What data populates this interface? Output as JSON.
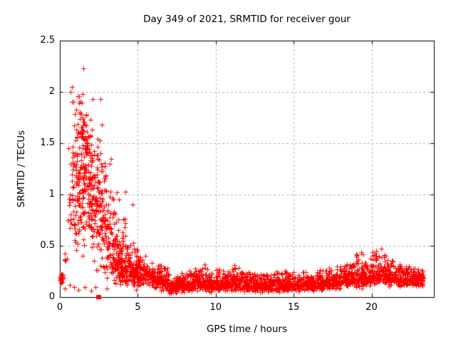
{
  "window": {
    "background": "#ffffff"
  },
  "chart_data": {
    "type": "scatter",
    "title": "Day 349 of 2021, SRMTID for receiver gour",
    "xlabel": "GPS time / hours",
    "ylabel": "SRMTID / TECUs",
    "xlim": [
      0,
      24
    ],
    "ylim": [
      0,
      2.5
    ],
    "grid": true,
    "legend": "none",
    "marker": "plus-cross",
    "marker_size_px": 7,
    "colors": {
      "marker": "#ff0000",
      "grid": "#b4b4b4",
      "border": "#000000",
      "text": "#000000",
      "background": "#ffffff"
    },
    "xticks": {
      "values": [
        0,
        5,
        10,
        15,
        20
      ],
      "labels": [
        "0",
        "5",
        "10",
        "15",
        "20"
      ]
    },
    "yticks": {
      "values": [
        0,
        0.5,
        1,
        1.5,
        2,
        2.5
      ],
      "labels": [
        "0",
        "0.5",
        "1",
        "1.5",
        "2",
        "2.5"
      ]
    },
    "seed": 1349,
    "bins_format": "[x_start_hours, x_width_hours, n_points, y_min_TECU, y_max_TECU, y_mode_TECU]",
    "bins": [
      [
        0.0,
        0.2,
        28,
        0.12,
        0.23,
        0.17
      ],
      [
        0.25,
        0.25,
        6,
        0.28,
        0.55,
        0.4
      ],
      [
        0.5,
        0.25,
        12,
        0.3,
        1.5,
        0.8
      ],
      [
        0.75,
        0.25,
        30,
        0.3,
        2.05,
        1.0
      ],
      [
        1.0,
        0.25,
        45,
        0.35,
        2.1,
        1.2
      ],
      [
        1.25,
        0.25,
        55,
        0.4,
        2.2,
        1.4
      ],
      [
        1.5,
        0.25,
        55,
        0.4,
        1.95,
        1.35
      ],
      [
        1.75,
        0.25,
        50,
        0.35,
        1.85,
        1.1
      ],
      [
        2.0,
        0.25,
        45,
        0.3,
        1.75,
        1.0
      ],
      [
        2.25,
        0.25,
        40,
        0.25,
        1.6,
        0.9
      ],
      [
        2.5,
        0.25,
        40,
        0.2,
        1.9,
        0.85
      ],
      [
        2.75,
        0.25,
        35,
        0.2,
        1.4,
        0.72
      ],
      [
        3.0,
        0.25,
        35,
        0.15,
        1.35,
        0.6
      ],
      [
        3.25,
        0.25,
        35,
        0.15,
        1.1,
        0.5
      ],
      [
        3.5,
        0.25,
        40,
        0.1,
        0.9,
        0.35
      ],
      [
        3.75,
        0.25,
        45,
        0.1,
        0.75,
        0.3
      ],
      [
        4.0,
        0.25,
        40,
        0.1,
        0.8,
        0.3
      ],
      [
        4.25,
        0.25,
        35,
        0.12,
        0.6,
        0.3
      ],
      [
        4.5,
        0.25,
        35,
        0.1,
        0.65,
        0.28
      ],
      [
        4.75,
        0.25,
        35,
        0.08,
        0.6,
        0.25
      ],
      [
        5.0,
        0.5,
        55,
        0.08,
        0.45,
        0.2
      ],
      [
        5.5,
        0.5,
        55,
        0.08,
        0.38,
        0.2
      ],
      [
        6.0,
        0.5,
        55,
        0.08,
        0.35,
        0.18
      ],
      [
        6.5,
        0.5,
        55,
        0.05,
        0.3,
        0.15
      ],
      [
        7.0,
        0.5,
        55,
        0.03,
        0.22,
        0.1
      ],
      [
        7.5,
        0.5,
        55,
        0.04,
        0.25,
        0.12
      ],
      [
        8.0,
        0.5,
        55,
        0.05,
        0.28,
        0.13
      ],
      [
        8.5,
        0.5,
        55,
        0.05,
        0.3,
        0.15
      ],
      [
        9.0,
        0.5,
        55,
        0.05,
        0.3,
        0.15
      ],
      [
        9.5,
        0.5,
        55,
        0.04,
        0.25,
        0.12
      ],
      [
        10.0,
        0.5,
        55,
        0.05,
        0.28,
        0.13
      ],
      [
        10.5,
        0.5,
        55,
        0.04,
        0.25,
        0.12
      ],
      [
        11.0,
        0.5,
        55,
        0.05,
        0.3,
        0.14
      ],
      [
        11.5,
        0.5,
        55,
        0.04,
        0.25,
        0.12
      ],
      [
        12.0,
        0.5,
        55,
        0.05,
        0.28,
        0.13
      ],
      [
        12.5,
        0.5,
        55,
        0.04,
        0.25,
        0.11
      ],
      [
        13.0,
        0.5,
        55,
        0.04,
        0.24,
        0.11
      ],
      [
        13.5,
        0.5,
        55,
        0.05,
        0.26,
        0.12
      ],
      [
        14.0,
        0.5,
        55,
        0.04,
        0.28,
        0.12
      ],
      [
        14.5,
        0.5,
        55,
        0.05,
        0.25,
        0.12
      ],
      [
        15.0,
        0.5,
        55,
        0.04,
        0.25,
        0.12
      ],
      [
        15.5,
        0.5,
        55,
        0.05,
        0.26,
        0.13
      ],
      [
        16.0,
        0.5,
        55,
        0.05,
        0.25,
        0.12
      ],
      [
        16.5,
        0.5,
        55,
        0.05,
        0.28,
        0.13
      ],
      [
        17.0,
        0.5,
        55,
        0.06,
        0.3,
        0.14
      ],
      [
        17.5,
        0.5,
        55,
        0.06,
        0.32,
        0.15
      ],
      [
        18.0,
        0.5,
        55,
        0.08,
        0.35,
        0.17
      ],
      [
        18.5,
        0.5,
        55,
        0.08,
        0.38,
        0.18
      ],
      [
        19.0,
        0.5,
        60,
        0.08,
        0.45,
        0.2
      ],
      [
        19.5,
        0.5,
        60,
        0.1,
        0.42,
        0.2
      ],
      [
        20.0,
        0.5,
        60,
        0.08,
        0.47,
        0.22
      ],
      [
        20.5,
        0.5,
        60,
        0.1,
        0.45,
        0.22
      ],
      [
        21.0,
        0.5,
        55,
        0.1,
        0.4,
        0.2
      ],
      [
        21.5,
        0.5,
        55,
        0.1,
        0.35,
        0.18
      ],
      [
        22.0,
        0.5,
        55,
        0.1,
        0.32,
        0.18
      ],
      [
        22.5,
        0.5,
        55,
        0.1,
        0.3,
        0.17
      ],
      [
        23.0,
        0.3,
        35,
        0.1,
        0.28,
        0.17
      ]
    ],
    "outlier_points": [
      [
        0.3,
        0.08
      ],
      [
        0.55,
        1.45
      ],
      [
        0.62,
        0.12
      ],
      [
        0.7,
        2.0
      ],
      [
        0.78,
        2.05
      ],
      [
        0.85,
        1.9
      ],
      [
        0.9,
        0.1
      ],
      [
        1.2,
        0.07
      ],
      [
        1.5,
        2.23
      ],
      [
        1.62,
        0.1
      ],
      [
        2.0,
        0.06
      ],
      [
        2.12,
        1.93
      ],
      [
        2.3,
        0.1
      ],
      [
        2.62,
        1.93
      ],
      [
        3.0,
        0.08
      ],
      [
        3.3,
        1.35
      ],
      [
        3.65,
        1.02
      ],
      [
        3.8,
        0.95
      ],
      [
        4.2,
        1.03
      ],
      [
        4.65,
        0.9
      ],
      [
        4.9,
        0.07
      ],
      [
        9.3,
        0.32
      ],
      [
        11.2,
        0.31
      ],
      [
        19.35,
        0.44
      ],
      [
        19.45,
        0.42
      ],
      [
        20.3,
        0.45
      ],
      [
        20.6,
        0.47
      ],
      [
        22.4,
        0.3
      ]
    ],
    "special_points": [
      {
        "x": 2.48,
        "y": 0.0,
        "marker": "filled-square",
        "color": "#ff0000"
      }
    ]
  }
}
